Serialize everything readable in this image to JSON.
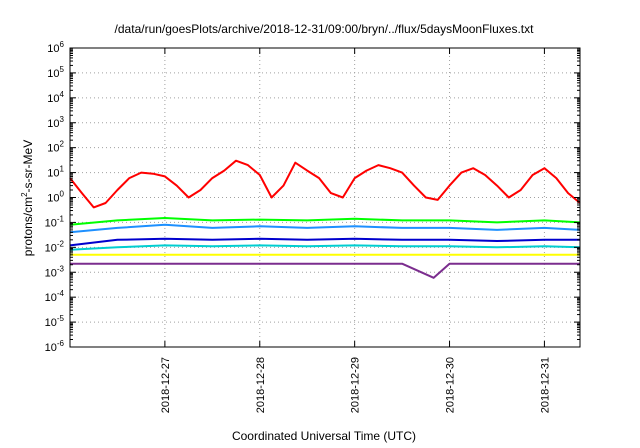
{
  "chart_data": {
    "type": "line",
    "title": "/data/run/goesPlots/archive/2018-12-31/09:00/bryn/../flux/5daysMoonFluxes.txt",
    "xlabel": "Coordinated Universal Time (UTC)",
    "ylabel": {
      "base": "protons/cm",
      "sup": "2",
      "rest": "-s-sr-MeV"
    },
    "y_scale": "log",
    "ylim": [
      1e-06,
      1000000.0
    ],
    "y_ticks": [
      {
        "base": "10",
        "exp": "-6"
      },
      {
        "base": "10",
        "exp": "-5"
      },
      {
        "base": "10",
        "exp": "-4"
      },
      {
        "base": "10",
        "exp": "-3"
      },
      {
        "base": "10",
        "exp": "-2"
      },
      {
        "base": "10",
        "exp": "-1"
      },
      {
        "base": "10",
        "exp": "0"
      },
      {
        "base": "10",
        "exp": "1"
      },
      {
        "base": "10",
        "exp": "2"
      },
      {
        "base": "10",
        "exp": "3"
      },
      {
        "base": "10",
        "exp": "4"
      },
      {
        "base": "10",
        "exp": "5"
      },
      {
        "base": "10",
        "exp": "6"
      }
    ],
    "x_ticks": [
      "2018-12-27",
      "2018-12-28",
      "2018-12-29",
      "2018-12-30",
      "2018-12-31"
    ],
    "xlim": [
      "2018-12-26 00:00",
      "2018-12-31 09:00"
    ],
    "grid": true,
    "series": [
      {
        "color": "#ff0000",
        "x": [
          "2018-12-26 00:00",
          "2018-12-26 03:00",
          "2018-12-26 06:00",
          "2018-12-26 09:00",
          "2018-12-26 12:00",
          "2018-12-26 15:00",
          "2018-12-26 18:00",
          "2018-12-26 21:00",
          "2018-12-27 00:00",
          "2018-12-27 03:00",
          "2018-12-27 06:00",
          "2018-12-27 09:00",
          "2018-12-27 12:00",
          "2018-12-27 15:00",
          "2018-12-27 18:00",
          "2018-12-27 21:00",
          "2018-12-28 00:00",
          "2018-12-28 03:00",
          "2018-12-28 06:00",
          "2018-12-28 09:00",
          "2018-12-28 12:00",
          "2018-12-28 15:00",
          "2018-12-28 18:00",
          "2018-12-28 21:00",
          "2018-12-29 00:00",
          "2018-12-29 03:00",
          "2018-12-29 06:00",
          "2018-12-29 09:00",
          "2018-12-29 12:00",
          "2018-12-29 15:00",
          "2018-12-29 18:00",
          "2018-12-29 21:00",
          "2018-12-30 00:00",
          "2018-12-30 03:00",
          "2018-12-30 06:00",
          "2018-12-30 09:00",
          "2018-12-30 12:00",
          "2018-12-30 15:00",
          "2018-12-30 18:00",
          "2018-12-30 21:00",
          "2018-12-31 00:00",
          "2018-12-31 03:00",
          "2018-12-31 06:00",
          "2018-12-31 09:00"
        ],
        "y": [
          6,
          1.5,
          0.4,
          0.6,
          2,
          6,
          10,
          9,
          7,
          3,
          1,
          2,
          6,
          12,
          30,
          20,
          8,
          1,
          3,
          25,
          12,
          6,
          1.5,
          1,
          6,
          12,
          20,
          15,
          10,
          3,
          1,
          0.8,
          3,
          10,
          15,
          8,
          3,
          1,
          2,
          8,
          15,
          6,
          1.5,
          0.6
        ]
      },
      {
        "color": "#00ff00",
        "x": [
          "2018-12-26 00:00",
          "2018-12-26 12:00",
          "2018-12-27 00:00",
          "2018-12-27 12:00",
          "2018-12-28 00:00",
          "2018-12-28 12:00",
          "2018-12-29 00:00",
          "2018-12-29 12:00",
          "2018-12-30 00:00",
          "2018-12-30 12:00",
          "2018-12-31 00:00",
          "2018-12-31 09:00"
        ],
        "y": [
          0.08,
          0.12,
          0.15,
          0.12,
          0.13,
          0.12,
          0.14,
          0.12,
          0.12,
          0.1,
          0.12,
          0.1
        ]
      },
      {
        "color": "#1e90ff",
        "x": [
          "2018-12-26 00:00",
          "2018-12-26 12:00",
          "2018-12-27 00:00",
          "2018-12-27 12:00",
          "2018-12-28 00:00",
          "2018-12-28 12:00",
          "2018-12-29 00:00",
          "2018-12-29 12:00",
          "2018-12-30 00:00",
          "2018-12-30 12:00",
          "2018-12-31 00:00",
          "2018-12-31 09:00"
        ],
        "y": [
          0.04,
          0.06,
          0.08,
          0.06,
          0.07,
          0.06,
          0.07,
          0.06,
          0.06,
          0.05,
          0.06,
          0.05
        ]
      },
      {
        "color": "#00ced1",
        "x": [
          "2018-12-26 00:00",
          "2018-12-26 12:00",
          "2018-12-27 00:00",
          "2018-12-27 12:00",
          "2018-12-28 00:00",
          "2018-12-28 12:00",
          "2018-12-29 00:00",
          "2018-12-29 12:00",
          "2018-12-30 00:00",
          "2018-12-30 12:00",
          "2018-12-31 00:00",
          "2018-12-31 09:00"
        ],
        "y": [
          0.008,
          0.01,
          0.012,
          0.011,
          0.012,
          0.011,
          0.012,
          0.011,
          0.011,
          0.01,
          0.011,
          0.01
        ]
      },
      {
        "color": "#0000cd",
        "x": [
          "2018-12-26 00:00",
          "2018-12-26 12:00",
          "2018-12-27 00:00",
          "2018-12-27 12:00",
          "2018-12-28 00:00",
          "2018-12-28 12:00",
          "2018-12-29 00:00",
          "2018-12-29 12:00",
          "2018-12-30 00:00",
          "2018-12-30 12:00",
          "2018-12-31 00:00",
          "2018-12-31 09:00"
        ],
        "y": [
          0.012,
          0.02,
          0.022,
          0.02,
          0.022,
          0.02,
          0.022,
          0.02,
          0.02,
          0.018,
          0.02,
          0.02
        ]
      },
      {
        "color": "#ffff00",
        "x": [
          "2018-12-26 00:00",
          "2018-12-26 12:00",
          "2018-12-27 00:00",
          "2018-12-27 12:00",
          "2018-12-28 00:00",
          "2018-12-28 12:00",
          "2018-12-29 00:00",
          "2018-12-29 12:00",
          "2018-12-30 00:00",
          "2018-12-30 12:00",
          "2018-12-31 00:00",
          "2018-12-31 09:00"
        ],
        "y": [
          0.005,
          0.005,
          0.005,
          0.005,
          0.005,
          0.005,
          0.005,
          0.005,
          0.005,
          0.005,
          0.005,
          0.005
        ]
      },
      {
        "color": "#7b2d8e",
        "x": [
          "2018-12-26 00:00",
          "2018-12-26 12:00",
          "2018-12-27 00:00",
          "2018-12-27 12:00",
          "2018-12-28 00:00",
          "2018-12-28 12:00",
          "2018-12-29 00:00",
          "2018-12-29 12:00",
          "2018-12-29 20:00",
          "2018-12-30 00:00",
          "2018-12-30 12:00",
          "2018-12-31 00:00",
          "2018-12-31 09:00"
        ],
        "y": [
          0.0022,
          0.0022,
          0.0022,
          0.0022,
          0.0022,
          0.0022,
          0.0022,
          0.0022,
          0.0006,
          0.0022,
          0.0022,
          0.0022,
          0.0022
        ]
      }
    ]
  }
}
